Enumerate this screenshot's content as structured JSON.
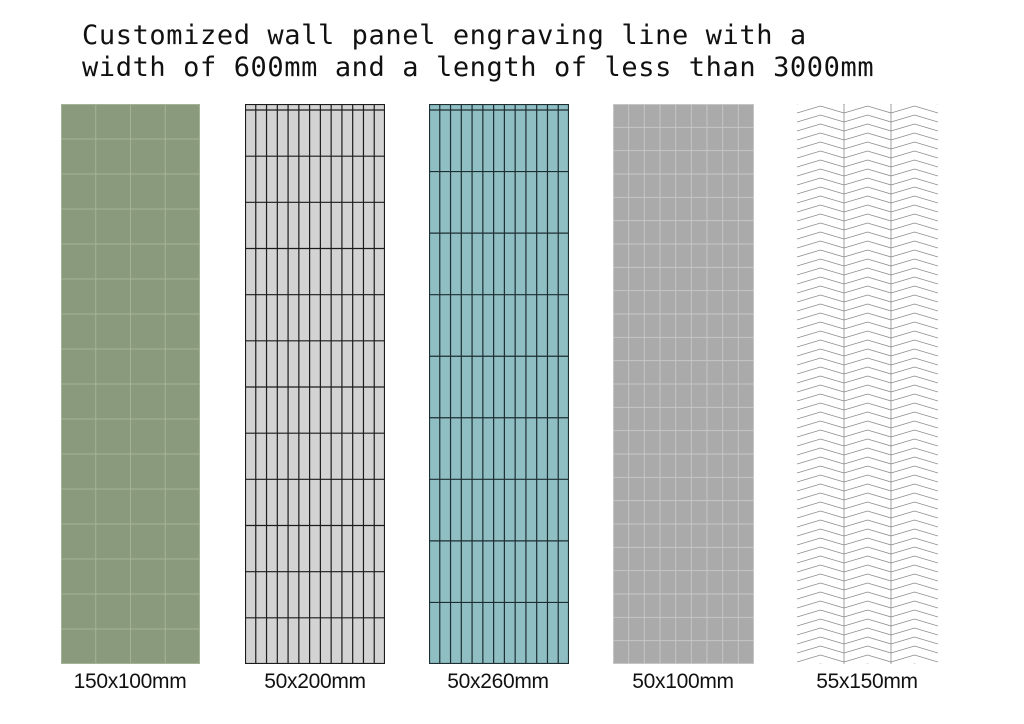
{
  "title": {
    "line1": "Customized wall panel engraving line with a",
    "line2": "width of 600mm and a length of less than 3000mm"
  },
  "panels": [
    {
      "label": "150x100mm",
      "color": "#8a9a7c",
      "line_color": "#a7b59b",
      "pattern": "grid"
    },
    {
      "label": "50x200mm",
      "color": "#d3d3d3",
      "line_color": "#1c1c1c",
      "pattern": "grid"
    },
    {
      "label": "50x260mm",
      "color": "#8fbec3",
      "line_color": "#1d2f33",
      "pattern": "grid"
    },
    {
      "label": "50x100mm",
      "color": "#aaaaaa",
      "line_color": "#c8c8c8",
      "pattern": "grid"
    },
    {
      "label": "55x150mm",
      "color": "#ffffff",
      "line_color": "#8c8c8c",
      "pattern": "herringbone"
    }
  ]
}
